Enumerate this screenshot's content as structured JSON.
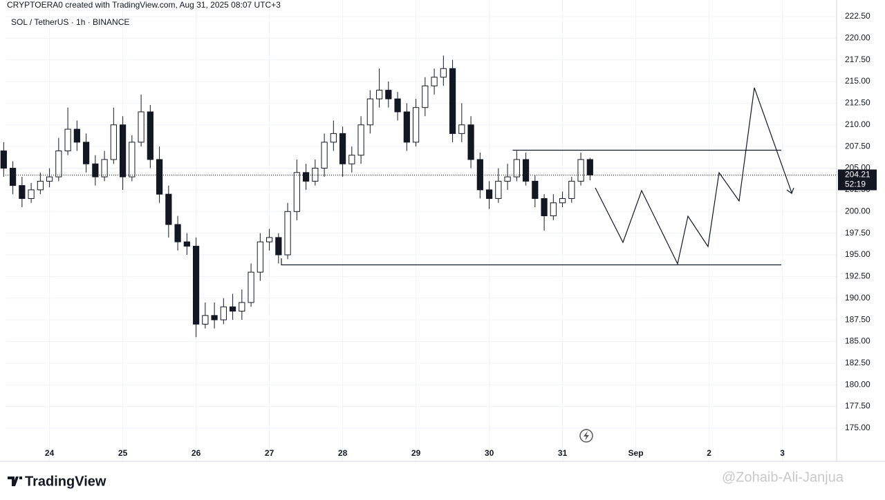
{
  "header": {
    "credit": "CRYPTOERA0 created with TradingView.com, Aug 31, 2025 08:07 UTC+3",
    "logo": "TradingView",
    "watermark": "@Zohaib-Ali-Janjua"
  },
  "chart_data": {
    "type": "candlestick",
    "title": "SOL / TetherUS · 1h · BINANCE",
    "x": [
      23.375,
      23.5,
      23.625,
      23.75,
      23.875,
      24,
      24.125,
      24.25,
      24.375,
      24.5,
      24.625,
      24.75,
      24.875,
      25,
      25.125,
      25.25,
      25.375,
      25.5,
      25.625,
      25.75,
      25.875,
      26,
      26.125,
      26.25,
      26.375,
      26.5,
      26.625,
      26.75,
      26.875,
      27,
      27.125,
      27.25,
      27.375,
      27.5,
      27.625,
      27.75,
      27.875,
      28,
      28.125,
      28.25,
      28.375,
      28.5,
      28.625,
      28.75,
      28.875,
      29,
      29.125,
      29.25,
      29.375,
      29.5,
      29.625,
      29.75,
      29.875,
      30,
      30.125,
      30.25,
      30.375,
      30.5,
      30.625,
      30.75,
      30.875,
      31,
      31.125,
      31.25,
      31.375
    ],
    "open": [
      207,
      205,
      203,
      201.5,
      202.5,
      203.5,
      204,
      207,
      209.5,
      208,
      205.5,
      204,
      206,
      210,
      204,
      208,
      211.5,
      206,
      202,
      198.5,
      196.5,
      196,
      187,
      188,
      187.5,
      189,
      188.5,
      189.5,
      193,
      196.5,
      197,
      195,
      200,
      204.5,
      203.5,
      205,
      208,
      209,
      205.5,
      206.5,
      210,
      213,
      214,
      213,
      211.5,
      208,
      212,
      214.5,
      215.5,
      216.5,
      209,
      210,
      206,
      202.5,
      201.5,
      203.5,
      204,
      206,
      203.5,
      201.5,
      199.5,
      201,
      201.5,
      203.5,
      206
    ],
    "high": [
      208,
      205.8,
      204,
      203.3,
      204.5,
      205,
      208.5,
      212,
      210.5,
      209,
      206.5,
      207,
      212,
      211,
      208.8,
      213.5,
      212.3,
      207.5,
      203,
      199.5,
      197.5,
      197,
      189.5,
      189.5,
      190,
      190.5,
      191,
      194,
      197.5,
      198,
      197.5,
      201,
      206,
      205.5,
      206,
      209,
      210.5,
      209.8,
      207.5,
      211,
      214,
      216.5,
      215,
      213.8,
      212.5,
      213,
      215.5,
      216.5,
      218,
      217.5,
      212.5,
      211,
      206.8,
      203.5,
      205,
      205.5,
      207,
      206.8,
      204.2,
      202,
      202,
      202.3,
      204,
      206.8,
      206.2
    ],
    "low": [
      204,
      202,
      200.5,
      201,
      202,
      202.8,
      203.5,
      206.5,
      207,
      204.5,
      203,
      203.5,
      205.5,
      202.5,
      203.5,
      207.5,
      205,
      201,
      197,
      195.5,
      195,
      185.5,
      186.5,
      186.5,
      187,
      187.5,
      187.5,
      189,
      192,
      195.5,
      194,
      194.5,
      199,
      202.5,
      203,
      204,
      207,
      204,
      204.5,
      205.5,
      209,
      212,
      212,
      210.5,
      207,
      207.5,
      211,
      213.5,
      214.5,
      208,
      208,
      205,
      201.5,
      200.3,
      201,
      202.5,
      203.5,
      203,
      200.5,
      197.8,
      199,
      200.5,
      201,
      203,
      203.6
    ],
    "close": [
      205,
      203,
      201.5,
      202.5,
      203.5,
      204,
      207,
      209.5,
      208,
      205.5,
      204,
      206,
      210,
      204,
      208,
      211.5,
      206,
      202,
      198.5,
      196.5,
      196,
      187,
      188,
      187.5,
      189,
      188.5,
      189.5,
      193,
      196.5,
      197,
      195,
      200,
      204.5,
      203.5,
      205,
      208,
      209,
      205.5,
      206.5,
      210,
      213,
      214,
      213,
      211.5,
      208,
      212,
      214.5,
      215.5,
      216.5,
      209,
      210,
      206,
      202.5,
      201.5,
      203.5,
      204,
      206,
      203.5,
      201.5,
      199.5,
      201,
      201.5,
      203.5,
      206,
      204.21
    ],
    "up_color": "#ffffff",
    "down_color": "#131722",
    "last_price": 204.21,
    "countdown": "52:19",
    "xlim": [
      23.4,
      34.74
    ],
    "ylim": [
      171.17,
      224.41
    ],
    "xticks": [
      24,
      25,
      26,
      27,
      28,
      29,
      30,
      31,
      {
        "value": 32,
        "label": "Sep"
      },
      {
        "value": 33,
        "label": "2"
      },
      {
        "value": 34,
        "label": "3"
      }
    ],
    "yticks": [
      {
        "value": 175,
        "label": "175.00"
      },
      {
        "value": 177.5,
        "label": "177.50"
      },
      {
        "value": 180,
        "label": "180.00"
      },
      {
        "value": 182.5,
        "label": "182.50"
      },
      {
        "value": 185,
        "label": "185.00"
      },
      {
        "value": 187.5,
        "label": "187.50"
      },
      {
        "value": 190,
        "label": "190.00"
      },
      {
        "value": 192.5,
        "label": "192.50"
      },
      {
        "value": 195,
        "label": "195.00"
      },
      {
        "value": 197.5,
        "label": "197.50"
      },
      {
        "value": 200,
        "label": "200.00"
      },
      {
        "value": 202.5,
        "label": "202.50"
      },
      {
        "value": 205,
        "label": "205.00"
      },
      {
        "value": 207.5,
        "label": "207.50"
      },
      {
        "value": 210,
        "label": "210.00"
      },
      {
        "value": 212.5,
        "label": "212.50"
      },
      {
        "value": 215,
        "label": "215.00"
      },
      {
        "value": 217.5,
        "label": "217.50"
      },
      {
        "value": 220,
        "label": "220.00"
      },
      {
        "value": 222.5,
        "label": "222.50"
      }
    ],
    "grid": true
  }
}
